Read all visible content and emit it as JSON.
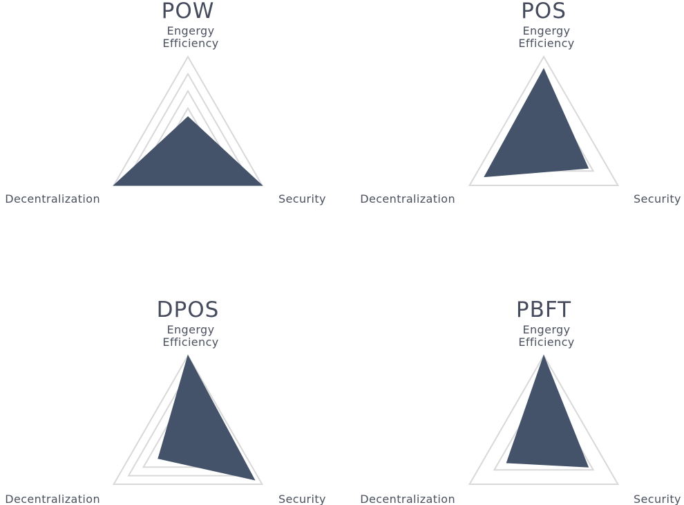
{
  "chart_data": [
    {
      "type": "radar",
      "title": "POW",
      "axes": [
        "Engergy Efficiency",
        "Security",
        "Decentralization"
      ],
      "values": [
        0.3,
        1.0,
        1.0
      ],
      "range": [
        0,
        1
      ],
      "grid_levels": 5
    },
    {
      "type": "radar",
      "title": "POS",
      "axes": [
        "Engergy Efficiency",
        "Security",
        "Decentralization"
      ],
      "values": [
        0.86,
        0.6,
        0.8
      ],
      "range": [
        0,
        1
      ],
      "grid_levels": 3
    },
    {
      "type": "radar",
      "title": "DPOS",
      "axes": [
        "Engergy Efficiency",
        "Security",
        "Decentralization"
      ],
      "values": [
        1.0,
        0.9,
        0.4
      ],
      "range": [
        0,
        1
      ],
      "grid_levels": 5
    },
    {
      "type": "radar",
      "title": "PBFT",
      "axes": [
        "Engergy Efficiency",
        "Security",
        "Decentralization"
      ],
      "values": [
        1.0,
        0.6,
        0.5
      ],
      "range": [
        0,
        1
      ],
      "grid_levels": 3
    }
  ],
  "colors": {
    "fill": "#44526a",
    "grid": "#d8d8d8",
    "text": "#454b5c"
  }
}
